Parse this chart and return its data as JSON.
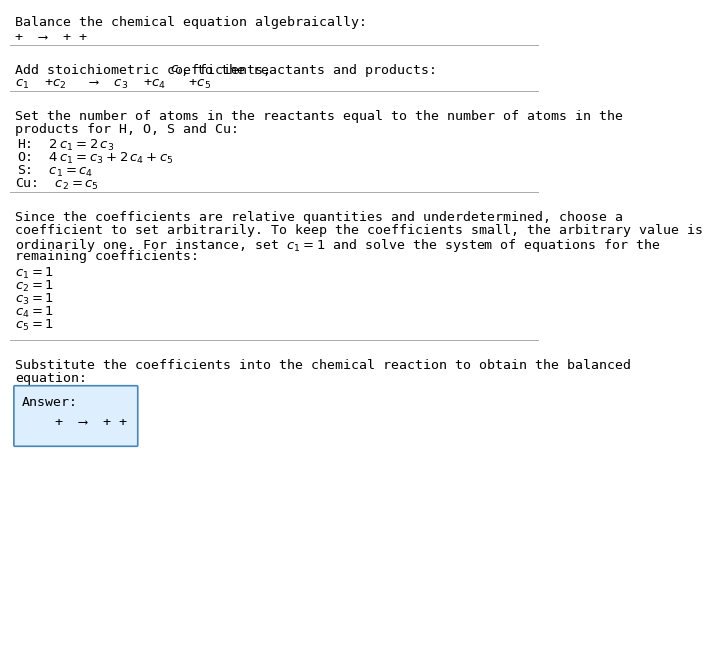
{
  "title": "Balance the chemical equation algebraically:",
  "eq1": "+  ⟶  + +",
  "section2_title": "Add stoichiometric coefficients, $c_i$, to the reactants and products:",
  "eq2_parts": [
    "$c_1$  +$c_2$   ⟶  $c_3$  +$c_4$   +$c_5$"
  ],
  "section3_title_l1": "Set the number of atoms in the reactants equal to the number of atoms in the",
  "section3_title_l2": "products for H, O, S and Cu:",
  "equations": [
    [
      "  H: ",
      " $2\\,c_1 = 2\\,c_3$"
    ],
    [
      "  O: ",
      " $4\\,c_1 = c_3 + 2\\,c_4 + c_5$"
    ],
    [
      "   S: ",
      " $c_1 = c_4$"
    ],
    [
      "Cu: ",
      " $c_2 = c_5$"
    ]
  ],
  "section4_l1": "Since the coefficients are relative quantities and underdetermined, choose a",
  "section4_l2": "coefficient to set arbitrarily. To keep the coefficients small, the arbitrary value is",
  "section4_l3": "ordinarily one. For instance, set $c_1 = 1$ and solve the system of equations for the",
  "section4_l4": "remaining coefficients:",
  "coefficients": [
    "$c_1 = 1$",
    "$c_2 = 1$",
    "$c_3 = 1$",
    "$c_4 = 1$",
    "$c_5 = 1$"
  ],
  "section5_l1": "Substitute the coefficients into the chemical reaction to obtain the balanced",
  "section5_l2": "equation:",
  "answer_label": "Answer:",
  "answer_eq": "   +  ⟶  + +",
  "bg_color": "#ffffff",
  "text_color": "#000000",
  "line_color": "#aaaaaa",
  "answer_box_bg": "#ddeeff",
  "answer_box_border": "#4488bb",
  "fs_body": 9.5,
  "fs_eq": 9.5,
  "fs_mono": 9.5
}
